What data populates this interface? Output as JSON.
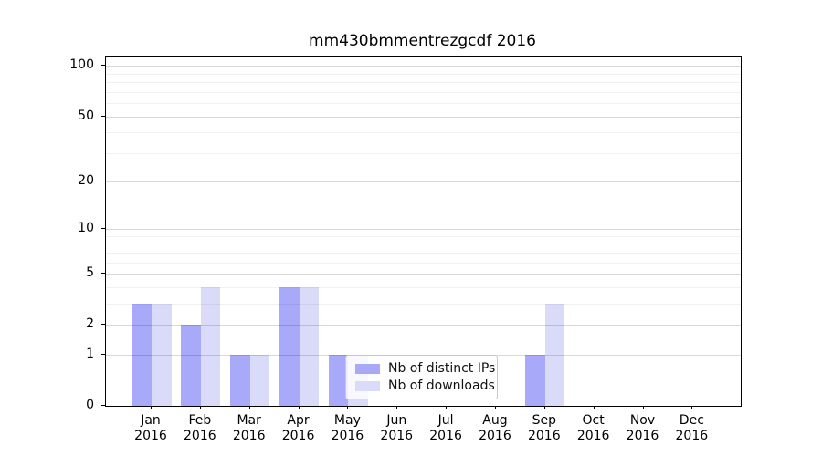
{
  "chart_data": {
    "type": "bar",
    "title": "mm430bmmentrezgcdf 2016",
    "categories": [
      "Jan",
      "Feb",
      "Mar",
      "Apr",
      "May",
      "Jun",
      "Jul",
      "Aug",
      "Sep",
      "Oct",
      "Nov",
      "Dec"
    ],
    "category_year": "2016",
    "series": [
      {
        "name": "Nb of distinct IPs",
        "color": "#a9a9fa",
        "values": [
          3,
          2,
          1,
          4,
          1,
          0,
          0,
          0,
          1,
          0,
          0,
          0
        ]
      },
      {
        "name": "Nb of downloads",
        "color": "#dadaf9",
        "values": [
          3,
          4,
          1,
          4,
          1,
          0,
          0,
          0,
          3,
          0,
          0,
          0
        ]
      }
    ],
    "yscale": "log1p",
    "ylim": [
      0,
      114
    ],
    "yticks": [
      0,
      1,
      2,
      5,
      10,
      20,
      50,
      100
    ],
    "minor_gridlines": [
      3,
      4,
      6,
      7,
      8,
      9,
      30,
      40,
      60,
      70,
      80,
      90
    ],
    "grid": true,
    "legend_position": "lower center"
  }
}
